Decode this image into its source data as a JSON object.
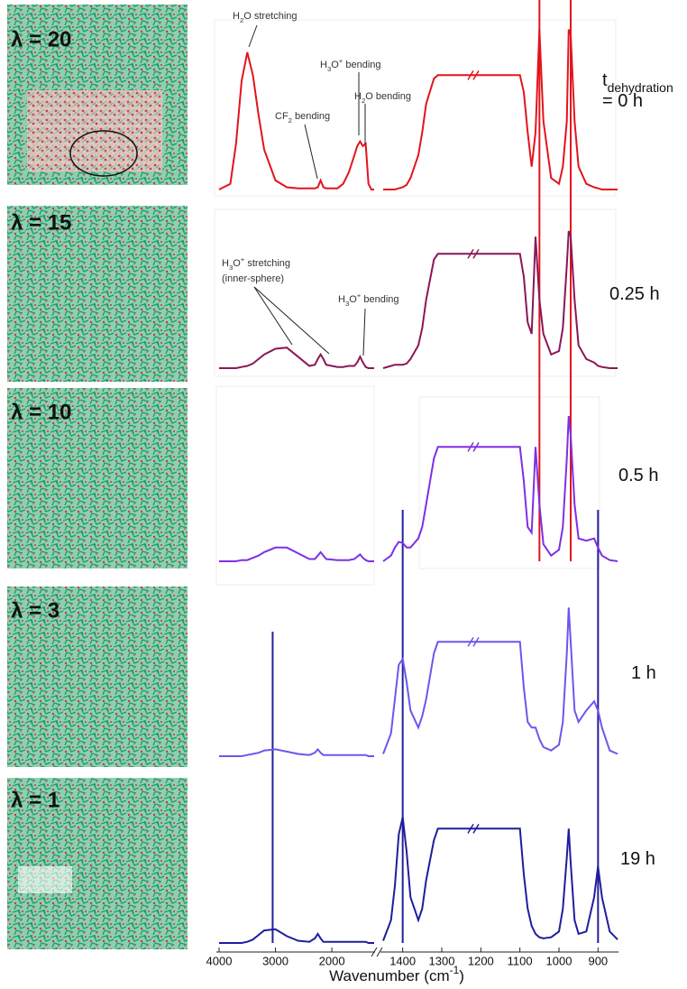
{
  "panels": [
    {
      "lambda": "λ = 20",
      "time_lines": [
        [
          {
            "text": "t"
          },
          {
            "sub": "dehydration"
          }
        ],
        [
          {
            "text": "= 0 h"
          }
        ]
      ]
    },
    {
      "lambda": "λ = 15",
      "time_lines": [
        [
          {
            "text": "0.25 h"
          }
        ]
      ]
    },
    {
      "lambda": "λ = 10",
      "time_lines": [
        [
          {
            "text": "0.5 h"
          }
        ]
      ]
    },
    {
      "lambda": "λ = 3",
      "time_lines": [
        [
          {
            "text": "1 h"
          }
        ]
      ]
    },
    {
      "lambda": "λ = 1",
      "time_lines": [
        [
          {
            "text": "19 h"
          }
        ]
      ]
    }
  ],
  "annotations": [
    {
      "parts": [
        {
          "text": "H"
        },
        {
          "sub": "2"
        },
        {
          "text": "O stretching"
        }
      ]
    },
    {
      "parts": [
        {
          "text": "CF"
        },
        {
          "sub": "2"
        },
        {
          "text": " bending"
        }
      ]
    },
    {
      "parts": [
        {
          "text": "H"
        },
        {
          "sub": "3"
        },
        {
          "text": "O"
        },
        {
          "sup": "+"
        },
        {
          "text": " bending"
        }
      ]
    },
    {
      "parts": [
        {
          "text": "H"
        },
        {
          "sub": "2"
        },
        {
          "text": "O bending"
        }
      ]
    },
    {
      "parts": [
        {
          "text": "H"
        },
        {
          "sub": "3"
        },
        {
          "text": "O"
        },
        {
          "sup": "+"
        },
        {
          "text": " stretching"
        }
      ]
    },
    {
      "parts": [
        {
          "text": "(inner-sphere)"
        }
      ]
    },
    {
      "parts": [
        {
          "text": "H"
        },
        {
          "sub": "3"
        },
        {
          "text": "O"
        },
        {
          "sup": "+"
        },
        {
          "text": " bending"
        }
      ]
    }
  ],
  "x_label": [
    {
      "text": "Wavenumber (cm"
    },
    {
      "sup": "-1"
    },
    {
      "text": ")"
    }
  ],
  "chart_data": [
    {
      "type": "line",
      "xlim": [
        4000,
        1250
      ],
      "xticks": [
        4000,
        3000,
        2000
      ],
      "ylim": [
        0,
        1.5
      ],
      "x": [
        4000,
        3800,
        3700,
        3600,
        3500,
        3400,
        3300,
        3200,
        3000,
        2800,
        2600,
        2400,
        2300,
        2250,
        2200,
        2150,
        2100,
        1900,
        1800,
        1700,
        1600,
        1550,
        1500,
        1450,
        1400,
        1350,
        1300,
        1250
      ],
      "vlines": [
        {
          "x": 3050,
          "color": "#22219a"
        }
      ],
      "series": [
        {
          "color": "#e3141c",
          "values": [
            0,
            0.05,
            0.4,
            0.95,
            1.2,
            1.0,
            0.65,
            0.35,
            0.08,
            0.02,
            0.01,
            0.01,
            0.01,
            0.02,
            0.08,
            0.02,
            0.01,
            0.01,
            0.05,
            0.15,
            0.3,
            0.38,
            0.42,
            0.38,
            0.4,
            0.05,
            0,
            0
          ]
        },
        {
          "color": "#8a1757",
          "values": [
            0,
            0,
            0,
            0.01,
            0.02,
            0.04,
            0.08,
            0.12,
            0.17,
            0.18,
            0.1,
            0.02,
            0.03,
            0.08,
            0.12,
            0.08,
            0.03,
            0.01,
            0.01,
            0.02,
            0.02,
            0.05,
            0.1,
            0.05,
            0.01,
            0,
            0,
            0
          ]
        },
        {
          "color": "#7e2fe6",
          "values": [
            0,
            0,
            0,
            0.01,
            0.01,
            0.03,
            0.05,
            0.08,
            0.12,
            0.12,
            0.07,
            0.02,
            0.02,
            0.05,
            0.08,
            0.05,
            0.02,
            0.01,
            0.01,
            0.01,
            0.02,
            0.04,
            0.06,
            0.03,
            0.01,
            0,
            0,
            0
          ]
        },
        {
          "color": "#6e55ee",
          "values": [
            0,
            0,
            0,
            0,
            0.01,
            0.02,
            0.03,
            0.05,
            0.06,
            0.04,
            0.02,
            0.01,
            0.03,
            0.06,
            0.03,
            0.01,
            0.01,
            0.01,
            0.01,
            0.01,
            0.01,
            0.01,
            0.01,
            0.01,
            0.01,
            0,
            0,
            0
          ]
        },
        {
          "color": "#1f1d9e",
          "values": [
            0,
            0,
            0,
            0,
            0.01,
            0.03,
            0.07,
            0.11,
            0.12,
            0.06,
            0.02,
            0.01,
            0.04,
            0.08,
            0.04,
            0.01,
            0.01,
            0.01,
            0.01,
            0.01,
            0.01,
            0.01,
            0.01,
            0.01,
            0.01,
            0,
            0,
            0
          ]
        }
      ]
    },
    {
      "type": "line",
      "xlim": [
        1450,
        850
      ],
      "xticks": [
        1400,
        1300,
        1200,
        1100,
        1000,
        900
      ],
      "ylim": [
        0,
        1.5
      ],
      "x": [
        1450,
        1430,
        1420,
        1410,
        1400,
        1390,
        1380,
        1360,
        1350,
        1340,
        1320,
        1310,
        1100,
        1090,
        1080,
        1070,
        1060,
        1050,
        1040,
        1020,
        1000,
        990,
        980,
        975,
        970,
        960,
        950,
        930,
        910,
        900,
        890,
        870,
        850
      ],
      "vlines": [
        {
          "x": 1050,
          "color": "#e3141c"
        },
        {
          "x": 970,
          "color": "#e3141c"
        },
        {
          "x": 1400,
          "color": "#22219a"
        },
        {
          "x": 900,
          "color": "#22219a"
        }
      ],
      "series": [
        {
          "color": "#e3141c",
          "values": [
            0,
            0,
            0,
            0.01,
            0.02,
            0.04,
            0.1,
            0.3,
            0.5,
            0.75,
            0.97,
            1,
            1,
            0.85,
            0.5,
            0.2,
            0.5,
            1.4,
            0.6,
            0.1,
            0.05,
            0.2,
            0.6,
            1.4,
            1.35,
            0.6,
            0.2,
            0.05,
            0.02,
            0.01,
            0,
            0,
            0
          ]
        },
        {
          "color": "#8a1757",
          "values": [
            0,
            0.02,
            0.03,
            0.03,
            0.03,
            0.04,
            0.08,
            0.2,
            0.35,
            0.6,
            0.95,
            1,
            1,
            0.8,
            0.4,
            0.3,
            1.15,
            0.6,
            0.3,
            0.12,
            0.15,
            0.35,
            0.9,
            1.2,
            1.15,
            0.6,
            0.2,
            0.08,
            0.05,
            0.02,
            0.01,
            0,
            0
          ]
        },
        {
          "color": "#7e2fe6",
          "values": [
            0,
            0.05,
            0.12,
            0.17,
            0.16,
            0.12,
            0.12,
            0.2,
            0.3,
            0.5,
            0.9,
            1,
            1,
            0.7,
            0.3,
            0.25,
            1.0,
            0.5,
            0.15,
            0.05,
            0.1,
            0.3,
            0.9,
            1.27,
            1.1,
            0.5,
            0.2,
            0.18,
            0.2,
            0.12,
            0.05,
            0.01,
            0
          ]
        },
        {
          "color": "#6e55ee",
          "values": [
            0.02,
            0.2,
            0.5,
            0.8,
            0.85,
            0.65,
            0.4,
            0.25,
            0.35,
            0.5,
            0.9,
            1,
            1,
            0.6,
            0.3,
            0.25,
            0.25,
            0.15,
            0.08,
            0.05,
            0.1,
            0.3,
            0.9,
            1.3,
            1.0,
            0.4,
            0.3,
            0.4,
            0.48,
            0.4,
            0.25,
            0.05,
            0.02
          ]
        },
        {
          "color": "#1f1d9e",
          "values": [
            0.02,
            0.2,
            0.5,
            0.95,
            1.1,
            0.8,
            0.4,
            0.2,
            0.3,
            0.55,
            0.9,
            1,
            1,
            0.6,
            0.3,
            0.15,
            0.08,
            0.05,
            0.04,
            0.05,
            0.1,
            0.3,
            0.75,
            1.0,
            0.7,
            0.2,
            0.08,
            0.1,
            0.4,
            0.67,
            0.4,
            0.1,
            0.03
          ]
        }
      ]
    }
  ]
}
